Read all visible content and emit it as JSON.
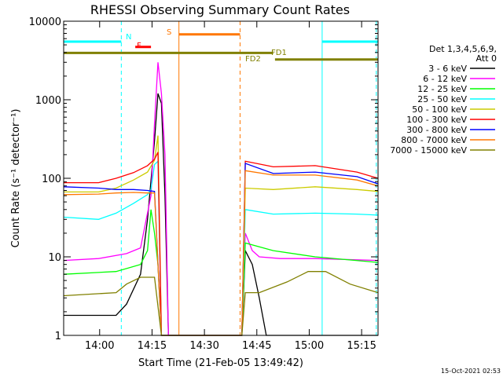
{
  "chart_data": {
    "type": "line",
    "title": "RHESSI Observing Summary Count Rates",
    "xlabel": "Start Time (21-Feb-05 13:49:42)",
    "ylabel": "Count Rate (s⁻¹ detector⁻¹)",
    "y_scale": "log",
    "ylim": [
      1,
      10000
    ],
    "xlim_minutes": [
      0,
      90
    ],
    "x_ticks": [
      {
        "label": "14:00",
        "t": 10.3
      },
      {
        "label": "14:15",
        "t": 25.3
      },
      {
        "label": "14:30",
        "t": 40.3
      },
      {
        "label": "14:45",
        "t": 55.3
      },
      {
        "label": "15:00",
        "t": 70.3
      },
      {
        "label": "15:15",
        "t": 85.3
      }
    ],
    "y_ticks": [
      {
        "label": "1",
        "v": 1
      },
      {
        "label": "10",
        "v": 10
      },
      {
        "label": "100",
        "v": 100
      },
      {
        "label": "1000",
        "v": 1000
      },
      {
        "label": "10000",
        "v": 10000
      }
    ],
    "legend_header": [
      "Det 1,3,4,5,6,9,",
      "Att 0"
    ],
    "series": [
      {
        "name": "3 - 6 keV",
        "color": "#000000",
        "points": [
          [
            0,
            1.8
          ],
          [
            15,
            1.8
          ],
          [
            18,
            2.5
          ],
          [
            22,
            6
          ],
          [
            24,
            30
          ],
          [
            26,
            300
          ],
          [
            27,
            1200
          ],
          [
            28,
            900
          ],
          [
            29,
            60
          ],
          [
            30,
            1
          ],
          [
            51,
            1
          ],
          [
            52,
            12
          ],
          [
            54,
            8
          ],
          [
            56,
            3
          ],
          [
            58,
            1
          ],
          [
            90,
            1
          ]
        ]
      },
      {
        "name": "6 - 12 keV",
        "color": "#ff00ff",
        "points": [
          [
            0,
            9
          ],
          [
            10,
            9.5
          ],
          [
            18,
            11
          ],
          [
            22,
            13
          ],
          [
            25,
            60
          ],
          [
            26,
            500
          ],
          [
            27,
            3000
          ],
          [
            28,
            1200
          ],
          [
            29,
            200
          ],
          [
            30,
            1
          ],
          [
            51,
            1
          ],
          [
            52,
            20
          ],
          [
            54,
            12
          ],
          [
            56,
            10
          ],
          [
            62,
            9.5
          ],
          [
            72,
            9.5
          ],
          [
            90,
            9
          ]
        ]
      },
      {
        "name": "12 - 25 keV",
        "color": "#00ff00",
        "points": [
          [
            0,
            6
          ],
          [
            15,
            6.5
          ],
          [
            22,
            8
          ],
          [
            24,
            12
          ],
          [
            25,
            40
          ],
          [
            26,
            20
          ],
          [
            27,
            8
          ],
          [
            28,
            1
          ],
          [
            51,
            1
          ],
          [
            52,
            15
          ],
          [
            60,
            12
          ],
          [
            72,
            10
          ],
          [
            90,
            8.5
          ]
        ]
      },
      {
        "name": "25 - 50 keV",
        "color": "#00ffff",
        "points": [
          [
            0,
            32
          ],
          [
            10,
            30
          ],
          [
            15,
            36
          ],
          [
            20,
            48
          ],
          [
            24,
            62
          ],
          [
            25,
            72
          ],
          [
            26,
            150
          ],
          [
            27,
            165
          ],
          [
            28,
            1
          ],
          [
            51,
            1
          ],
          [
            52,
            40
          ],
          [
            60,
            35
          ],
          [
            72,
            36
          ],
          [
            84,
            35
          ],
          [
            90,
            34
          ]
        ]
      },
      {
        "name": "50 - 100 keV",
        "color": "#cccc00",
        "points": [
          [
            0,
            67
          ],
          [
            10,
            67
          ],
          [
            15,
            75
          ],
          [
            20,
            95
          ],
          [
            24,
            120
          ],
          [
            26,
            170
          ],
          [
            27,
            350
          ],
          [
            28,
            1
          ],
          [
            51,
            1
          ],
          [
            52,
            75
          ],
          [
            60,
            72
          ],
          [
            72,
            78
          ],
          [
            84,
            72
          ],
          [
            90,
            68
          ]
        ]
      },
      {
        "name": "100 - 300 keV",
        "color": "#ff0000",
        "points": [
          [
            0,
            88
          ],
          [
            10,
            88
          ],
          [
            15,
            100
          ],
          [
            20,
            118
          ],
          [
            24,
            145
          ],
          [
            26,
            175
          ],
          [
            27,
            215
          ],
          [
            28,
            1
          ],
          [
            51,
            1
          ],
          [
            52,
            165
          ],
          [
            60,
            140
          ],
          [
            72,
            145
          ],
          [
            84,
            120
          ],
          [
            90,
            100
          ]
        ]
      },
      {
        "name": "300 - 800 keV",
        "color": "#0000ff",
        "points": [
          [
            0,
            78
          ],
          [
            10,
            75
          ],
          [
            15,
            72
          ],
          [
            20,
            72
          ],
          [
            24,
            70
          ],
          [
            26,
            68
          ],
          [
            28,
            1
          ],
          [
            51,
            1
          ],
          [
            52,
            155
          ],
          [
            60,
            115
          ],
          [
            72,
            120
          ],
          [
            84,
            105
          ],
          [
            90,
            85
          ]
        ]
      },
      {
        "name": "800 - 7000 keV",
        "color": "#ff7700",
        "points": [
          [
            0,
            62
          ],
          [
            10,
            63
          ],
          [
            15,
            65
          ],
          [
            20,
            66
          ],
          [
            24,
            65
          ],
          [
            26,
            65
          ],
          [
            28,
            1
          ],
          [
            51,
            1
          ],
          [
            52,
            125
          ],
          [
            60,
            110
          ],
          [
            72,
            110
          ],
          [
            84,
            95
          ],
          [
            90,
            80
          ]
        ]
      },
      {
        "name": "7000 - 15000 keV",
        "color": "#808000",
        "points": [
          [
            0,
            3.2
          ],
          [
            15,
            3.5
          ],
          [
            18,
            4.5
          ],
          [
            22,
            5.5
          ],
          [
            26,
            5.5
          ],
          [
            28,
            1
          ],
          [
            51,
            1
          ],
          [
            52,
            3.5
          ],
          [
            56,
            3.5
          ],
          [
            64,
            4.8
          ],
          [
            70,
            6.5
          ],
          [
            75,
            6.5
          ],
          [
            82,
            4.5
          ],
          [
            90,
            3.5
          ]
        ]
      }
    ],
    "annotations": [
      {
        "label": "N",
        "color": "#00ffff"
      },
      {
        "label": "F",
        "color": "#ff0000"
      },
      {
        "label": "S",
        "color": "#ff7700"
      },
      {
        "label": "FD1",
        "color": "#808000"
      },
      {
        "label": "FD2",
        "color": "#808000"
      }
    ],
    "flag_bars": [
      {
        "id": "night-1",
        "color": "#00ffff",
        "level": 5500,
        "t0": 0,
        "t1": 16.5
      },
      {
        "id": "night-2",
        "color": "#00ffff",
        "level": 5500,
        "t0": 74,
        "t1": 90
      },
      {
        "id": "flare",
        "color": "#ff0000",
        "level": 4700,
        "t0": 20.5,
        "t1": 25
      },
      {
        "id": "saa",
        "color": "#ff7700",
        "level": 6800,
        "t0": 33,
        "t1": 50.5
      },
      {
        "id": "fd1",
        "color": "#808000",
        "level": 3950,
        "t0": 0,
        "t1": 60
      },
      {
        "id": "fd2",
        "color": "#808000",
        "level": 3250,
        "t0": 60.5,
        "t1": 90
      }
    ],
    "vlines": [
      {
        "id": "night-end-1",
        "t": 16.5,
        "color": "#00ffff",
        "dash": true
      },
      {
        "id": "saa-start",
        "t": 33,
        "color": "#ff7700",
        "dash": false
      },
      {
        "id": "saa-end",
        "t": 50.5,
        "color": "#ff7700",
        "dash": true
      },
      {
        "id": "night-start-2",
        "t": 74,
        "color": "#00ffff",
        "dash": false
      },
      {
        "id": "night-end-2",
        "t": 89.5,
        "color": "#00ffff",
        "dash": true
      }
    ]
  },
  "timestamp": "15-Oct-2021 02:53"
}
